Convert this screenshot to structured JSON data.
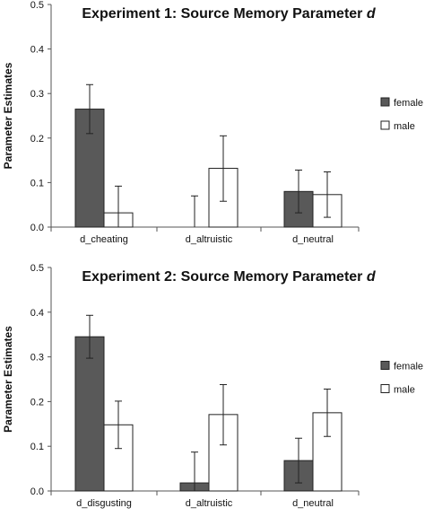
{
  "chart_data": [
    {
      "type": "bar",
      "title": "Experiment 1: Source Memory Parameter d",
      "title_main": "Experiment 1: Source Memory Parameter ",
      "title_italic": "d",
      "ylabel": "Parameter Estimates",
      "xlabel": "",
      "ylim": [
        0,
        0.5
      ],
      "yticks": [
        "0.0",
        "0.1",
        "0.2",
        "0.3",
        "0.4",
        "0.5"
      ],
      "categories": [
        "d_cheating",
        "d_altruistic",
        "d_neutral"
      ],
      "series": [
        {
          "name": "female",
          "color": "#595959",
          "values": [
            0.265,
            0.0,
            0.08
          ],
          "err_low": [
            0.21,
            0.0,
            0.032
          ],
          "err_high": [
            0.32,
            0.0,
            0.128
          ]
        },
        {
          "name": "male",
          "color": "#ffffff",
          "values": [
            0.032,
            0.132,
            0.073
          ],
          "err_low": [
            0.0,
            0.058,
            0.022
          ],
          "err_high": [
            0.092,
            0.205,
            0.124
          ]
        }
      ],
      "extra_error_bars": [
        {
          "category": "d_altruistic",
          "series": "female",
          "low": 0.0,
          "high": 0.07
        }
      ],
      "legend": {
        "position": "right",
        "entries": [
          "female",
          "male"
        ]
      },
      "grid": false
    },
    {
      "type": "bar",
      "title": "Experiment 2: Source Memory Parameter d",
      "title_main": "Experiment 2: Source Memory Parameter ",
      "title_italic": "d",
      "ylabel": "Parameter Estimates",
      "xlabel": "",
      "ylim": [
        0,
        0.5
      ],
      "yticks": [
        "0.0",
        "0.1",
        "0.2",
        "0.3",
        "0.4",
        "0.5"
      ],
      "categories": [
        "d_disgusting",
        "d_altruistic",
        "d_neutral"
      ],
      "series": [
        {
          "name": "female",
          "color": "#595959",
          "values": [
            0.345,
            0.018,
            0.068
          ],
          "err_low": [
            0.297,
            0.0,
            0.018
          ],
          "err_high": [
            0.393,
            0.087,
            0.118
          ]
        },
        {
          "name": "male",
          "color": "#ffffff",
          "values": [
            0.148,
            0.171,
            0.175
          ],
          "err_low": [
            0.095,
            0.103,
            0.122
          ],
          "err_high": [
            0.201,
            0.238,
            0.228
          ]
        }
      ],
      "legend": {
        "position": "right",
        "entries": [
          "female",
          "male"
        ]
      },
      "grid": false
    }
  ]
}
